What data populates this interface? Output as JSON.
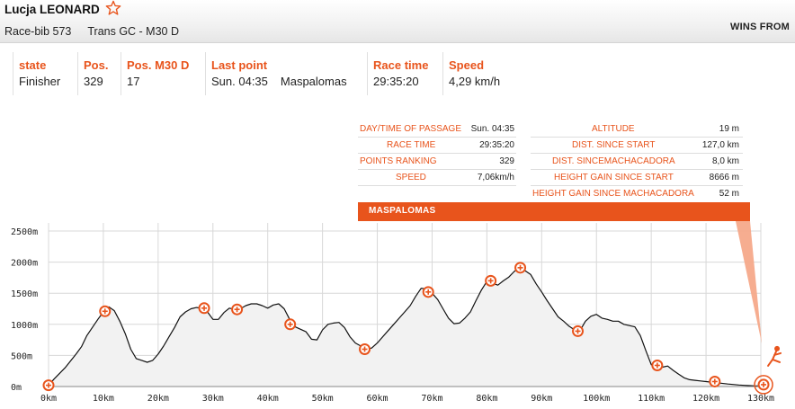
{
  "header": {
    "athlete_name": "Lucja LEONARD",
    "bib": "Race-bib 573",
    "category": "Trans GC - M30 D",
    "wins_from": "WINS FROM"
  },
  "icons": {
    "favorite": "star-outline-icon",
    "finish": "finish-runner-icon",
    "checkpoint": "checkpoint-plus-icon"
  },
  "colors": {
    "accent": "#e8541c",
    "profile_fill": "#f2f2f2",
    "profile_line": "#111111"
  },
  "stats": {
    "state_label": "state",
    "state_value": "Finisher",
    "pos_label": "Pos.",
    "pos_value": "329",
    "pos_cat_label": "Pos. M30 D",
    "pos_cat_value": "17",
    "last_point_label": "Last point",
    "last_point_time": "Sun. 04:35",
    "last_point_place": "Maspalomas",
    "race_time_label": "Race time",
    "race_time_value": "29:35:20",
    "speed_label": "Speed",
    "speed_value": "4,29 km/h"
  },
  "point_info": {
    "left": [
      {
        "key": "DAY/TIME OF PASSAGE",
        "value": "Sun. 04:35"
      },
      {
        "key": "RACE TIME",
        "value": "29:35:20"
      },
      {
        "key": "POINTS RANKING",
        "value": "329"
      },
      {
        "key": "SPEED",
        "value": "7,06km/h"
      }
    ],
    "right": [
      {
        "key": "ALTITUDE",
        "value": "19 m"
      },
      {
        "key": "DIST. SINCE START",
        "value": "127,0 km"
      },
      {
        "key": "DIST. SINCEMACHACADORA",
        "value": "8,0 km"
      },
      {
        "key": "HEIGHT GAIN SINCE START",
        "value": "8666 m"
      },
      {
        "key": "HEIGHT GAIN SINCE MACHACADORA",
        "value": "52 m"
      }
    ],
    "banner": "MASPALOMAS"
  },
  "chart_data": {
    "type": "area",
    "x_unit": "km",
    "y_unit": "m",
    "xlim": [
      0,
      130
    ],
    "ylim": [
      0,
      2500
    ],
    "x_ticks": [
      "0km",
      "10km",
      "20km",
      "30km",
      "40km",
      "50km",
      "60km",
      "70km",
      "80km",
      "90km",
      "100km",
      "110km",
      "120km",
      "130km"
    ],
    "y_ticks": [
      "0m",
      "500m",
      "1000m",
      "1500m",
      "2000m",
      "2500m"
    ],
    "grid": true,
    "profile": [
      [
        0,
        20
      ],
      [
        1,
        120
      ],
      [
        3,
        300
      ],
      [
        5,
        520
      ],
      [
        6,
        640
      ],
      [
        7,
        820
      ],
      [
        8,
        950
      ],
      [
        9,
        1080
      ],
      [
        10,
        1200
      ],
      [
        11,
        1280
      ],
      [
        12,
        1220
      ],
      [
        13,
        1050
      ],
      [
        14,
        850
      ],
      [
        15,
        600
      ],
      [
        16,
        450
      ],
      [
        17,
        420
      ],
      [
        18,
        390
      ],
      [
        19,
        420
      ],
      [
        20,
        520
      ],
      [
        21,
        650
      ],
      [
        22,
        800
      ],
      [
        23,
        950
      ],
      [
        24,
        1120
      ],
      [
        25,
        1200
      ],
      [
        26,
        1250
      ],
      [
        27,
        1270
      ],
      [
        28,
        1260
      ],
      [
        29,
        1200
      ],
      [
        30,
        1080
      ],
      [
        31,
        1080
      ],
      [
        32,
        1190
      ],
      [
        33,
        1260
      ],
      [
        34,
        1240
      ],
      [
        35,
        1250
      ],
      [
        36,
        1300
      ],
      [
        37,
        1330
      ],
      [
        38,
        1330
      ],
      [
        39,
        1300
      ],
      [
        40,
        1260
      ],
      [
        41,
        1310
      ],
      [
        42,
        1330
      ],
      [
        43,
        1250
      ],
      [
        44,
        1080
      ],
      [
        45,
        960
      ],
      [
        46,
        920
      ],
      [
        47,
        880
      ],
      [
        48,
        760
      ],
      [
        49,
        750
      ],
      [
        50,
        910
      ],
      [
        51,
        1000
      ],
      [
        52,
        1020
      ],
      [
        53,
        1030
      ],
      [
        54,
        950
      ],
      [
        55,
        800
      ],
      [
        56,
        700
      ],
      [
        57,
        650
      ],
      [
        58,
        590
      ],
      [
        59,
        620
      ],
      [
        60,
        700
      ],
      [
        61,
        800
      ],
      [
        62,
        900
      ],
      [
        63,
        1000
      ],
      [
        64,
        1100
      ],
      [
        65,
        1200
      ],
      [
        66,
        1300
      ],
      [
        67,
        1450
      ],
      [
        68,
        1580
      ],
      [
        69,
        1570
      ],
      [
        70,
        1500
      ],
      [
        71,
        1400
      ],
      [
        72,
        1250
      ],
      [
        73,
        1100
      ],
      [
        74,
        1010
      ],
      [
        75,
        1020
      ],
      [
        76,
        1100
      ],
      [
        77,
        1200
      ],
      [
        78,
        1380
      ],
      [
        79,
        1550
      ],
      [
        80,
        1690
      ],
      [
        81,
        1660
      ],
      [
        82,
        1630
      ],
      [
        83,
        1700
      ],
      [
        84,
        1760
      ],
      [
        85,
        1850
      ],
      [
        86,
        1910
      ],
      [
        87,
        1860
      ],
      [
        88,
        1800
      ],
      [
        89,
        1650
      ],
      [
        90,
        1520
      ],
      [
        91,
        1380
      ],
      [
        92,
        1250
      ],
      [
        93,
        1120
      ],
      [
        94,
        1050
      ],
      [
        95,
        970
      ],
      [
        96,
        910
      ],
      [
        97,
        900
      ],
      [
        98,
        1050
      ],
      [
        99,
        1130
      ],
      [
        100,
        1160
      ],
      [
        101,
        1100
      ],
      [
        102,
        1080
      ],
      [
        103,
        1050
      ],
      [
        104,
        1050
      ],
      [
        105,
        1000
      ],
      [
        106,
        980
      ],
      [
        107,
        960
      ],
      [
        108,
        820
      ],
      [
        109,
        580
      ],
      [
        110,
        350
      ],
      [
        111,
        320
      ],
      [
        112,
        310
      ],
      [
        113,
        330
      ],
      [
        114,
        260
      ],
      [
        115,
        200
      ],
      [
        116,
        140
      ],
      [
        117,
        110
      ],
      [
        118,
        100
      ],
      [
        119,
        90
      ],
      [
        120,
        80
      ],
      [
        122,
        60
      ],
      [
        124,
        40
      ],
      [
        126,
        25
      ],
      [
        127,
        19
      ],
      [
        128,
        15
      ],
      [
        129,
        10
      ],
      [
        130,
        8
      ]
    ],
    "checkpoints": [
      [
        0,
        20
      ],
      [
        10.3,
        1210
      ],
      [
        28.4,
        1260
      ],
      [
        34.4,
        1240
      ],
      [
        44.1,
        1000
      ],
      [
        57.7,
        600
      ],
      [
        69.3,
        1520
      ],
      [
        80.7,
        1700
      ],
      [
        86.1,
        1910
      ],
      [
        96.6,
        890
      ],
      [
        111.1,
        340
      ],
      [
        121.6,
        80
      ],
      [
        130.5,
        30
      ]
    ]
  }
}
